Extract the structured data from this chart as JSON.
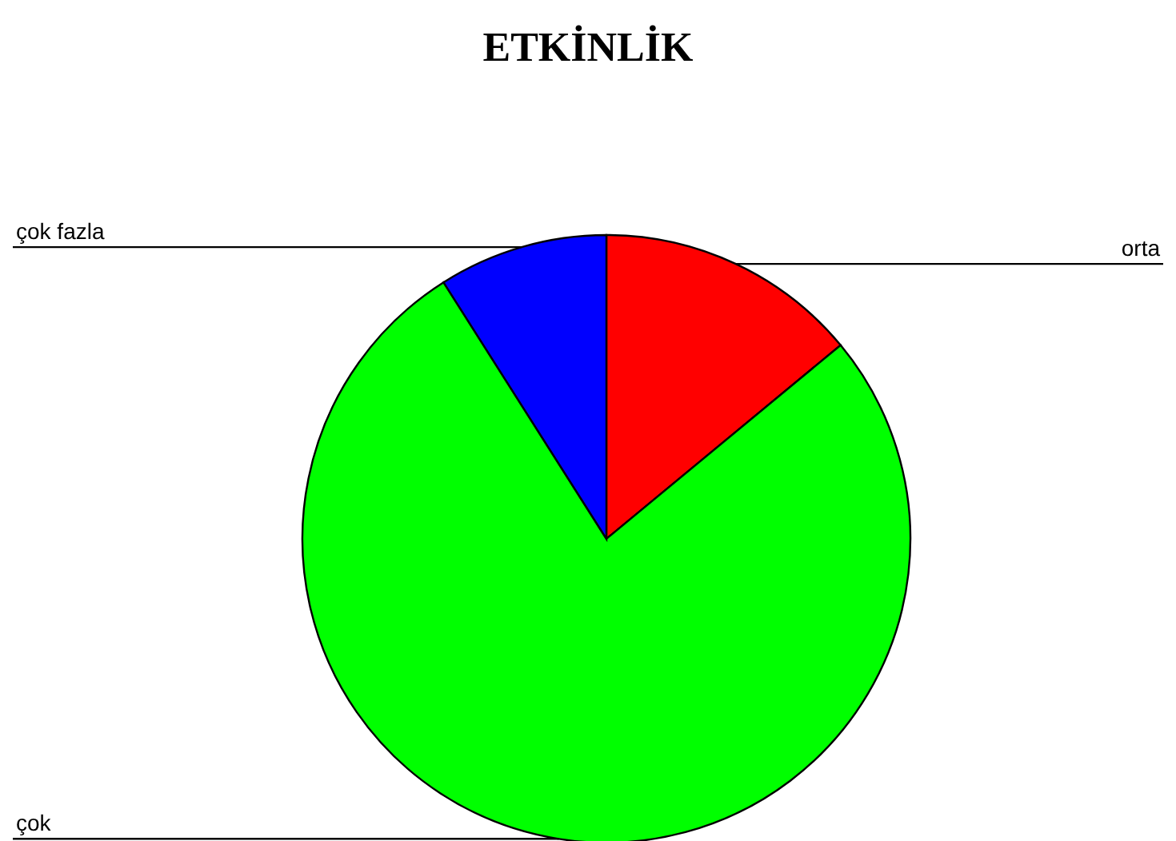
{
  "chart_data": {
    "type": "pie",
    "title": "ETKİNLİK",
    "categories": [
      "orta",
      "çok",
      "çok fazla"
    ],
    "values": [
      14,
      77,
      9
    ],
    "colors": [
      "#ff0000",
      "#00ff00",
      "#0000ff"
    ]
  }
}
